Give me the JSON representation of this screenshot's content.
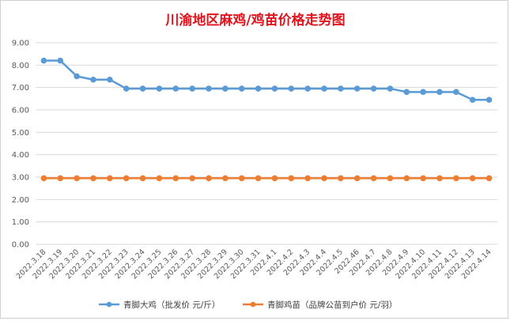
{
  "chart_data": {
    "type": "line",
    "title": "川渝地区麻鸡/鸡苗价格走势图",
    "xlabel": "",
    "ylabel": "",
    "ylim": [
      0,
      9
    ],
    "yticks": [
      "0.00",
      "1.00",
      "2.00",
      "3.00",
      "4.00",
      "5.00",
      "6.00",
      "7.00",
      "8.00",
      "9.00"
    ],
    "grid": true,
    "legend_position": "bottom",
    "categories": [
      "2022.3.18",
      "2022.3.19",
      "2022.3.20",
      "2022.3.21",
      "2022.3.22",
      "2022.3.23",
      "2022.3.24",
      "2022.3.25",
      "2022.3.26",
      "2022.3.27",
      "2022.3.28",
      "2022.3.29",
      "2022.3.30",
      "2022.3.31",
      "2022.4.1",
      "2022.4.2",
      "2022.4.3",
      "2022.4.4",
      "2022.4.5",
      "2022.46",
      "2022.4.7",
      "2022.4.8",
      "2022.4.9",
      "2022.4.10",
      "2022.4.11",
      "2022.4.12",
      "2022.4.13",
      "2022.4.14"
    ],
    "series": [
      {
        "name": "青脚大鸡（批发价 元/斤）",
        "color": "#5b9bd5",
        "values": [
          8.2,
          8.2,
          7.5,
          7.35,
          7.35,
          6.95,
          6.95,
          6.95,
          6.95,
          6.95,
          6.95,
          6.95,
          6.95,
          6.95,
          6.95,
          6.95,
          6.95,
          6.95,
          6.95,
          6.95,
          6.95,
          6.95,
          6.8,
          6.8,
          6.8,
          6.8,
          6.45,
          6.45
        ]
      },
      {
        "name": "青脚鸡苗（品牌公苗到户价 元/羽）",
        "color": "#ed7d31",
        "values": [
          2.95,
          2.95,
          2.95,
          2.95,
          2.95,
          2.95,
          2.95,
          2.95,
          2.95,
          2.95,
          2.95,
          2.95,
          2.95,
          2.95,
          2.95,
          2.95,
          2.95,
          2.95,
          2.95,
          2.95,
          2.95,
          2.95,
          2.95,
          2.95,
          2.95,
          2.95,
          2.95,
          2.95
        ]
      }
    ]
  }
}
